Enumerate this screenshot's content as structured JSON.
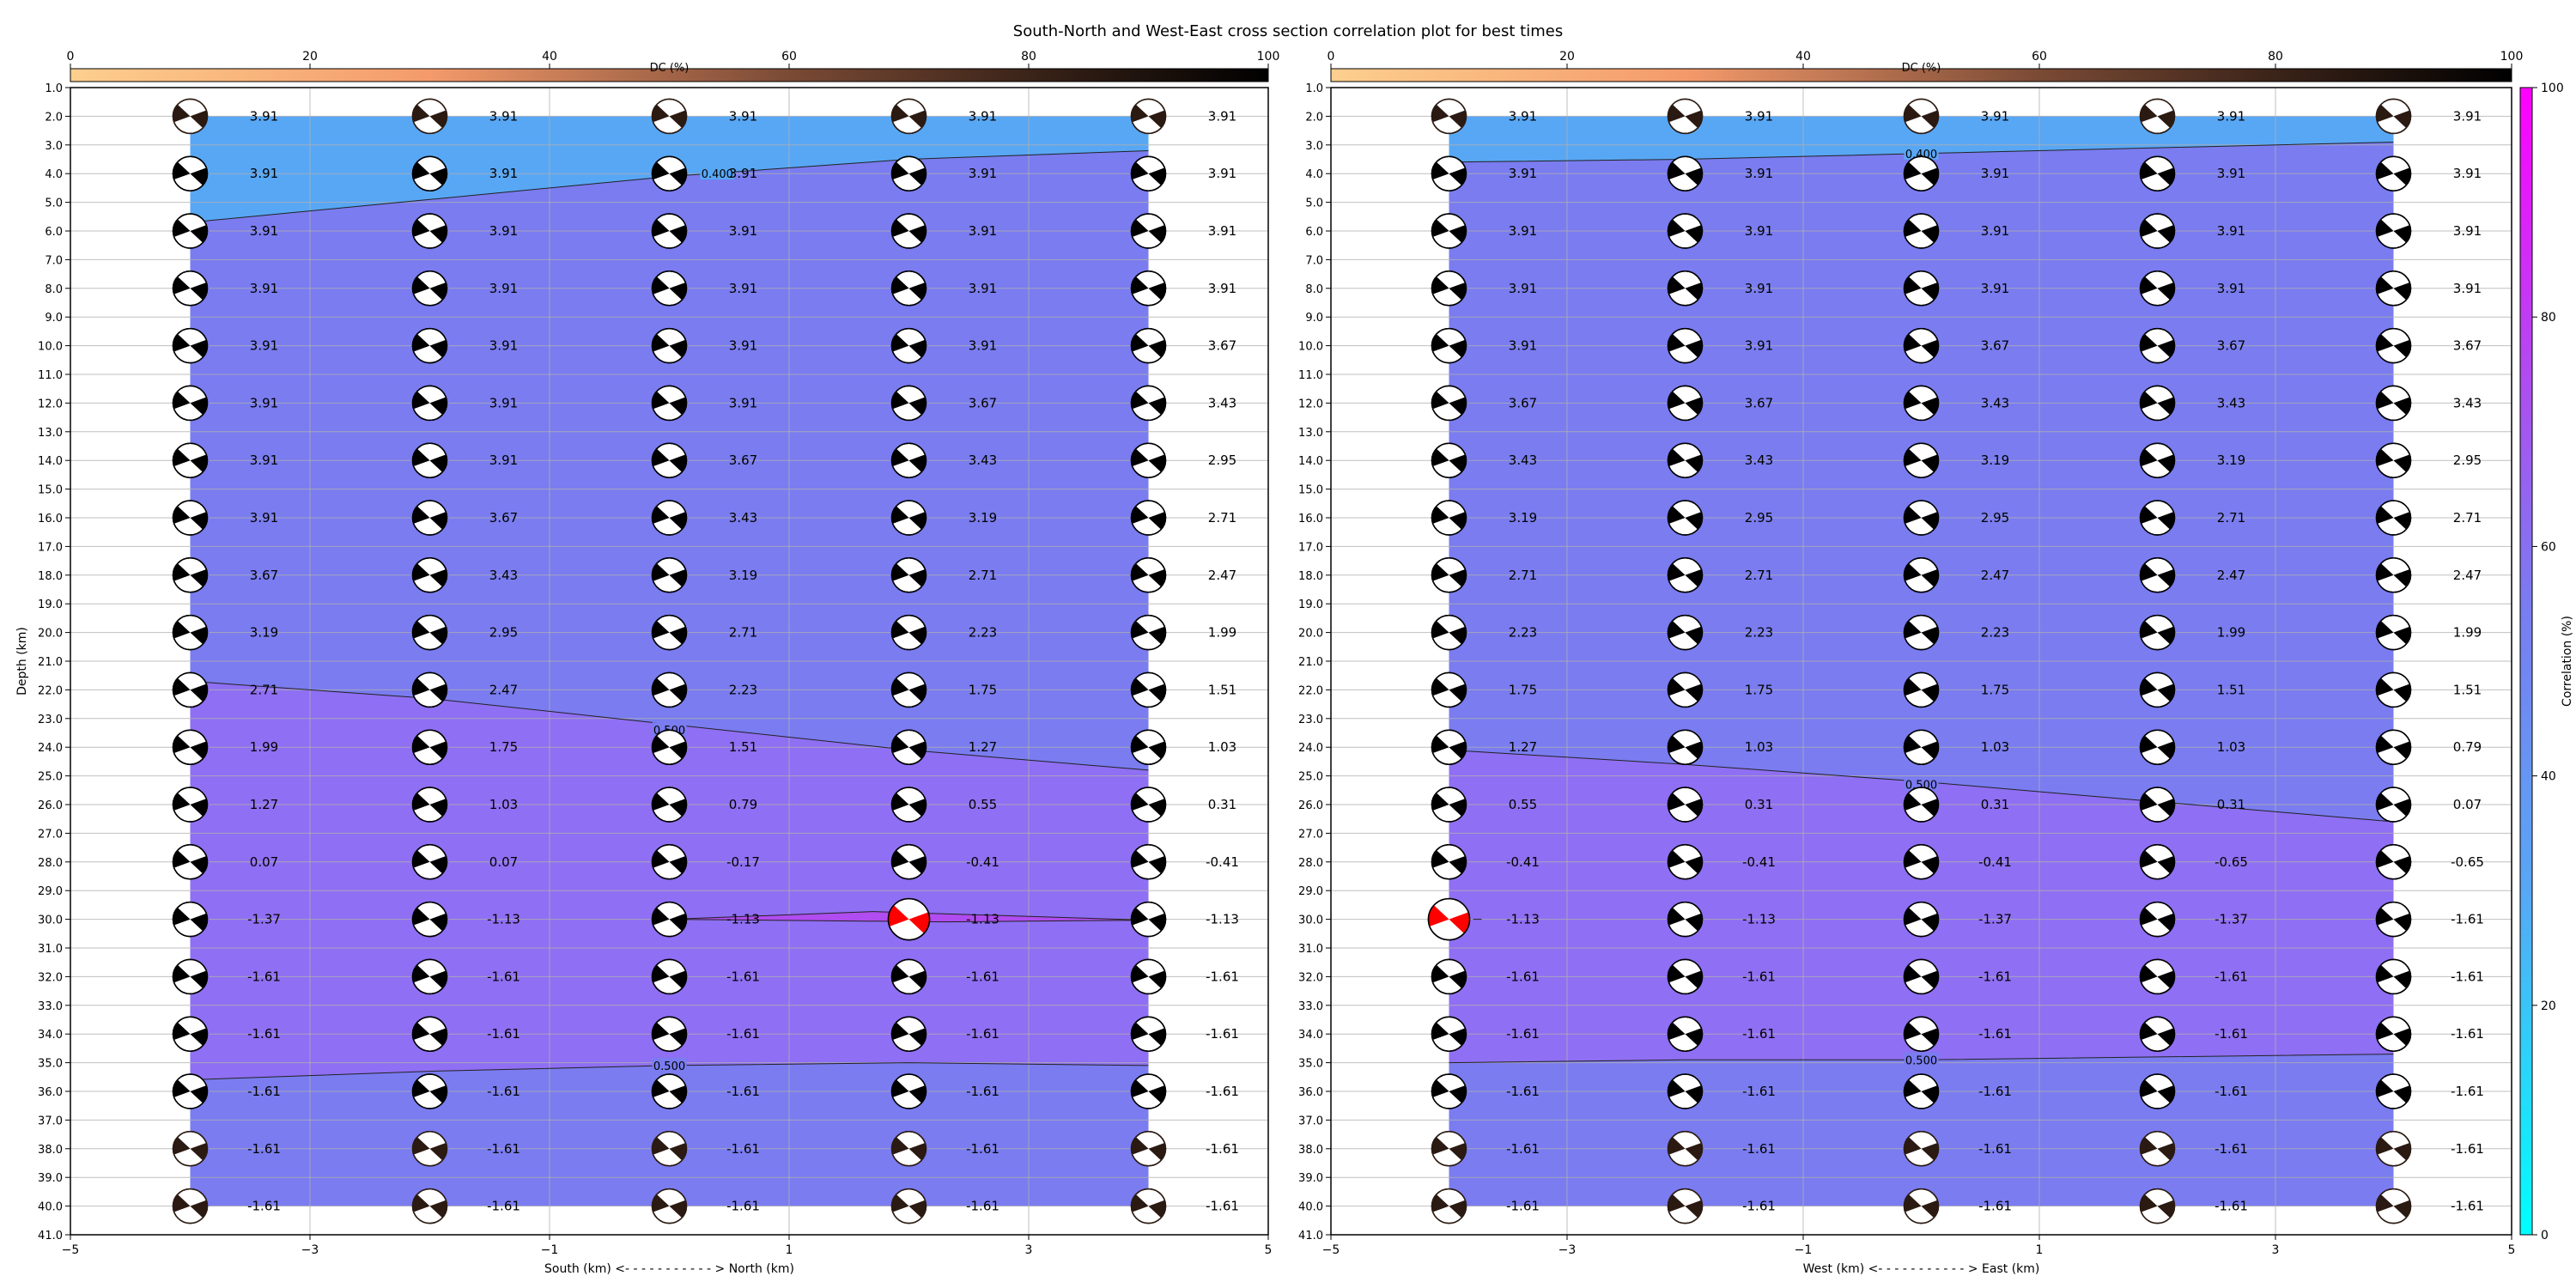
{
  "figure": {
    "title": "South-North and West-East cross section correlation plot for best times"
  },
  "colors": {
    "dc_colormap": [
      "#fdcf8e",
      "#f49a6b",
      "#7a4a35",
      "#2b1a12",
      "#000000"
    ],
    "correlation_colormap": [
      "#00ffff",
      "#58a7f5",
      "#7a7cf0",
      "#b04cf0",
      "#ff00ff"
    ],
    "optimum_beachball": "#ff0000",
    "beachball_dark": "#000000"
  },
  "dc_colorbar": {
    "label": "DC (%)",
    "range": [
      0,
      100
    ],
    "ticks": [
      "0",
      "20",
      "40",
      "60",
      "80",
      "100"
    ]
  },
  "correlation_colorbar": {
    "label": "Correlation (%)",
    "range": [
      0,
      100
    ],
    "ticks": [
      "0",
      "20",
      "40",
      "60",
      "80",
      "100"
    ]
  },
  "chart_data": [
    {
      "type": "heatmap",
      "subtype": "beachball-grid-with-contours",
      "xlabel": "South (km) <- - - - - - - - - - - > North (km)",
      "ylabel": "Depth (km)",
      "xlim": [
        -5,
        5
      ],
      "ylim": [
        41,
        1
      ],
      "xticks": [
        "−5",
        "−3",
        "−1",
        "1",
        "3",
        "5"
      ],
      "yticks": [
        "1.0",
        "2.0",
        "3.0",
        "4.0",
        "5.0",
        "6.0",
        "7.0",
        "8.0",
        "9.0",
        "10.0",
        "11.0",
        "12.0",
        "13.0",
        "14.0",
        "15.0",
        "16.0",
        "17.0",
        "18.0",
        "19.0",
        "20.0",
        "21.0",
        "22.0",
        "23.0",
        "24.0",
        "25.0",
        "26.0",
        "27.0",
        "28.0",
        "29.0",
        "30.0",
        "31.0",
        "32.0",
        "33.0",
        "34.0",
        "35.0",
        "36.0",
        "37.0",
        "38.0",
        "39.0",
        "40.0",
        "41.0"
      ],
      "grid": true,
      "x": [
        -4,
        -2,
        0,
        2,
        4
      ],
      "depths": [
        2,
        4,
        6,
        8,
        10,
        12,
        14,
        16,
        18,
        20,
        22,
        24,
        26,
        28,
        30,
        32,
        34,
        36,
        38,
        40
      ],
      "values": [
        [
          "3.91",
          "3.91",
          "3.91",
          "3.91",
          "3.91"
        ],
        [
          "3.91",
          "3.91",
          "3.91",
          "3.91",
          "3.91"
        ],
        [
          "3.91",
          "3.91",
          "3.91",
          "3.91",
          "3.91"
        ],
        [
          "3.91",
          "3.91",
          "3.91",
          "3.91",
          "3.91"
        ],
        [
          "3.91",
          "3.91",
          "3.91",
          "3.91",
          "3.67"
        ],
        [
          "3.91",
          "3.91",
          "3.91",
          "3.67",
          "3.43"
        ],
        [
          "3.91",
          "3.91",
          "3.67",
          "3.43",
          "2.95"
        ],
        [
          "3.91",
          "3.67",
          "3.43",
          "3.19",
          "2.71"
        ],
        [
          "3.67",
          "3.43",
          "3.19",
          "2.71",
          "2.47"
        ],
        [
          "3.19",
          "2.95",
          "2.71",
          "2.23",
          "1.99"
        ],
        [
          "2.71",
          "2.47",
          "2.23",
          "1.75",
          "1.51"
        ],
        [
          "1.99",
          "1.75",
          "1.51",
          "1.27",
          "1.03"
        ],
        [
          "1.27",
          "1.03",
          "0.79",
          "0.55",
          "0.31"
        ],
        [
          "0.07",
          "0.07",
          "-0.17",
          "-0.41",
          "-0.41"
        ],
        [
          "-1.37",
          "-1.13",
          "-1.13",
          "-1.13",
          "-1.13"
        ],
        [
          "-1.61",
          "-1.61",
          "-1.61",
          "-1.61",
          "-1.61"
        ],
        [
          "-1.61",
          "-1.61",
          "-1.61",
          "-1.61",
          "-1.61"
        ],
        [
          "-1.61",
          "-1.61",
          "-1.61",
          "-1.61",
          "-1.61"
        ],
        [
          "-1.61",
          "-1.61",
          "-1.61",
          "-1.61",
          "-1.61"
        ],
        [
          "-1.61",
          "-1.61",
          "-1.61",
          "-1.61",
          "-1.61"
        ]
      ],
      "optimum": {
        "x": 2,
        "depth": 30
      },
      "contours": [
        {
          "label": "0.400",
          "level": 0.4,
          "label_x": 0.4,
          "label_depth": 4.0,
          "points": [
            [
              -4,
              5.7
            ],
            [
              -2,
              4.9
            ],
            [
              0,
              4.1
            ],
            [
              2,
              3.5
            ],
            [
              4,
              3.2
            ]
          ]
        },
        {
          "label": "0.500",
          "level": 0.5,
          "label_x": 0,
          "label_depth": 23.4,
          "points": [
            [
              -4,
              21.7
            ],
            [
              -2,
              22.3
            ],
            [
              0,
              23.2
            ],
            [
              2,
              24.1
            ],
            [
              4,
              24.8
            ]
          ]
        },
        {
          "label": "0.500",
          "level": 0.5,
          "label_x": 0,
          "label_depth": 35.1,
          "points": [
            [
              -4,
              35.6
            ],
            [
              -2,
              35.3
            ],
            [
              0,
              35.1
            ],
            [
              2,
              35.0
            ],
            [
              4,
              35.1
            ]
          ]
        }
      ],
      "regions": [
        {
          "level": "below 0.4",
          "color": "#58a7f5"
        },
        {
          "level": "0.4 to 0.5",
          "color": "#7a7cf0"
        },
        {
          "level": "above 0.5",
          "color": "#8f6ff3"
        }
      ],
      "dc_percent_gradient": "top rows near 100% DC (brownish outline) to deep rows near 100%",
      "grid_extent": {
        "x": [
          -4,
          4
        ],
        "depth": [
          2,
          40
        ]
      }
    },
    {
      "type": "heatmap",
      "subtype": "beachball-grid-with-contours",
      "xlabel": "West (km) <- - - - - - - - - - - > East (km)",
      "ylabel": "",
      "xlim": [
        -5,
        5
      ],
      "ylim": [
        41,
        1
      ],
      "xticks": [
        "−5",
        "−3",
        "−1",
        "1",
        "3",
        "5"
      ],
      "yticks": [
        "1.0",
        "2.0",
        "3.0",
        "4.0",
        "5.0",
        "6.0",
        "7.0",
        "8.0",
        "9.0",
        "10.0",
        "11.0",
        "12.0",
        "13.0",
        "14.0",
        "15.0",
        "16.0",
        "17.0",
        "18.0",
        "19.0",
        "20.0",
        "21.0",
        "22.0",
        "23.0",
        "24.0",
        "25.0",
        "26.0",
        "27.0",
        "28.0",
        "29.0",
        "30.0",
        "31.0",
        "32.0",
        "33.0",
        "34.0",
        "35.0",
        "36.0",
        "37.0",
        "38.0",
        "39.0",
        "40.0",
        "41.0"
      ],
      "grid": true,
      "x": [
        -4,
        -2,
        0,
        2,
        4
      ],
      "depths": [
        2,
        4,
        6,
        8,
        10,
        12,
        14,
        16,
        18,
        20,
        22,
        24,
        26,
        28,
        30,
        32,
        34,
        36,
        38,
        40
      ],
      "values": [
        [
          "3.91",
          "3.91",
          "3.91",
          "3.91",
          "3.91"
        ],
        [
          "3.91",
          "3.91",
          "3.91",
          "3.91",
          "3.91"
        ],
        [
          "3.91",
          "3.91",
          "3.91",
          "3.91",
          "3.91"
        ],
        [
          "3.91",
          "3.91",
          "3.91",
          "3.91",
          "3.91"
        ],
        [
          "3.91",
          "3.91",
          "3.67",
          "3.67",
          "3.67"
        ],
        [
          "3.67",
          "3.67",
          "3.43",
          "3.43",
          "3.43"
        ],
        [
          "3.43",
          "3.43",
          "3.19",
          "3.19",
          "2.95"
        ],
        [
          "3.19",
          "2.95",
          "2.95",
          "2.71",
          "2.71"
        ],
        [
          "2.71",
          "2.71",
          "2.47",
          "2.47",
          "2.47"
        ],
        [
          "2.23",
          "2.23",
          "2.23",
          "1.99",
          "1.99"
        ],
        [
          "1.75",
          "1.75",
          "1.75",
          "1.51",
          "1.51"
        ],
        [
          "1.27",
          "1.03",
          "1.03",
          "1.03",
          "0.79"
        ],
        [
          "0.55",
          "0.31",
          "0.31",
          "0.31",
          "0.07"
        ],
        [
          "-0.41",
          "-0.41",
          "-0.41",
          "-0.65",
          "-0.65"
        ],
        [
          "-1.13",
          "-1.13",
          "-1.37",
          "-1.37",
          "-1.61"
        ],
        [
          "-1.61",
          "-1.61",
          "-1.61",
          "-1.61",
          "-1.61"
        ],
        [
          "-1.61",
          "-1.61",
          "-1.61",
          "-1.61",
          "-1.61"
        ],
        [
          "-1.61",
          "-1.61",
          "-1.61",
          "-1.61",
          "-1.61"
        ],
        [
          "-1.61",
          "-1.61",
          "-1.61",
          "-1.61",
          "-1.61"
        ],
        [
          "-1.61",
          "-1.61",
          "-1.61",
          "-1.61",
          "-1.61"
        ]
      ],
      "optimum": {
        "x": -4,
        "depth": 30
      },
      "contours": [
        {
          "label": "0.400",
          "level": 0.4,
          "label_x": 0,
          "label_depth": 3.3,
          "points": [
            [
              -4,
              3.6
            ],
            [
              -2,
              3.5
            ],
            [
              0,
              3.3
            ],
            [
              2,
              3.1
            ],
            [
              4,
              2.9
            ]
          ]
        },
        {
          "label": "0.500",
          "level": 0.5,
          "label_x": 0,
          "label_depth": 25.3,
          "points": [
            [
              -4,
              24.1
            ],
            [
              -2,
              24.6
            ],
            [
              0,
              25.2
            ],
            [
              2,
              25.9
            ],
            [
              4,
              26.6
            ]
          ]
        },
        {
          "label": "0.500",
          "level": 0.5,
          "label_x": 0,
          "label_depth": 34.9,
          "points": [
            [
              -4,
              35.0
            ],
            [
              -2,
              34.9
            ],
            [
              0,
              34.9
            ],
            [
              2,
              34.8
            ],
            [
              4,
              34.7
            ]
          ]
        }
      ],
      "regions": [
        {
          "level": "below 0.4",
          "color": "#58a7f5"
        },
        {
          "level": "0.4 to 0.5",
          "color": "#7a7cf0"
        },
        {
          "level": "above 0.5",
          "color": "#8f6ff3"
        }
      ],
      "grid_extent": {
        "x": [
          -4,
          4
        ],
        "depth": [
          2,
          40
        ]
      }
    }
  ]
}
